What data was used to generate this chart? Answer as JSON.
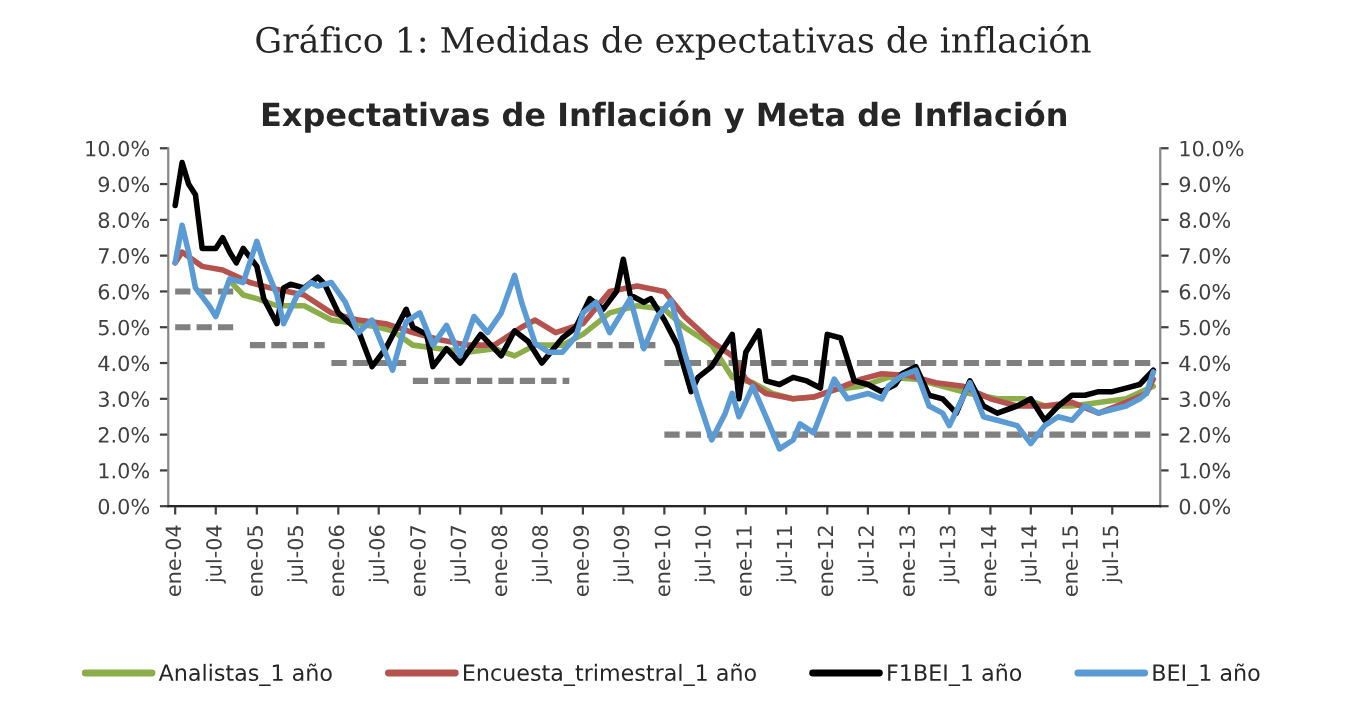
{
  "chart_data": {
    "type": "line",
    "title": "Expectativas de Inflación y Meta de Inflación",
    "annotations": [
      "Gráfico 1: Medidas de expectativas de inflación"
    ],
    "xlim": [
      "2003-12",
      "2016-02"
    ],
    "xticks": [
      {
        "value": "2004-01",
        "label": "ene-04"
      },
      {
        "value": "2004-07",
        "label": "jul-04"
      },
      {
        "value": "2005-01",
        "label": "ene-05"
      },
      {
        "value": "2005-07",
        "label": "jul-05"
      },
      {
        "value": "2006-01",
        "label": "ene-06"
      },
      {
        "value": "2006-07",
        "label": "jul-06"
      },
      {
        "value": "2007-01",
        "label": "ene-07"
      },
      {
        "value": "2007-07",
        "label": "jul-07"
      },
      {
        "value": "2008-01",
        "label": "ene-08"
      },
      {
        "value": "2008-07",
        "label": "jul-08"
      },
      {
        "value": "2009-01",
        "label": "ene-09"
      },
      {
        "value": "2009-07",
        "label": "jul-09"
      },
      {
        "value": "2010-01",
        "label": "ene-10"
      },
      {
        "value": "2010-07",
        "label": "jul-10"
      },
      {
        "value": "2011-01",
        "label": "ene-11"
      },
      {
        "value": "2011-07",
        "label": "jul-11"
      },
      {
        "value": "2012-01",
        "label": "ene-12"
      },
      {
        "value": "2012-07",
        "label": "jul-12"
      },
      {
        "value": "2013-01",
        "label": "ene-13"
      },
      {
        "value": "2013-07",
        "label": "jul-13"
      },
      {
        "value": "2014-01",
        "label": "ene-14"
      },
      {
        "value": "2014-07",
        "label": "jul-14"
      },
      {
        "value": "2015-01",
        "label": "ene-15"
      },
      {
        "value": "2015-07",
        "label": "jul-15"
      }
    ],
    "ylim": [
      0,
      10
    ],
    "yticks": [
      {
        "value": 0,
        "label": "0.0%"
      },
      {
        "value": 1,
        "label": "1.0%"
      },
      {
        "value": 2,
        "label": "2.0%"
      },
      {
        "value": 3,
        "label": "3.0%"
      },
      {
        "value": 4,
        "label": "4.0%"
      },
      {
        "value": 5,
        "label": "5.0%"
      },
      {
        "value": 6,
        "label": "6.0%"
      },
      {
        "value": 7,
        "label": "7.0%"
      },
      {
        "value": 8,
        "label": "8.0%"
      },
      {
        "value": 9,
        "label": "9.0%"
      },
      {
        "value": 10,
        "label": "10.0%"
      }
    ],
    "y2lim": [
      0,
      10
    ],
    "y2ticks": [
      {
        "value": 0,
        "label": "0.0%"
      },
      {
        "value": 1,
        "label": "1.0%"
      },
      {
        "value": 2,
        "label": "2.0%"
      },
      {
        "value": 3,
        "label": "3.0%"
      },
      {
        "value": 4,
        "label": "4.0%"
      },
      {
        "value": 5,
        "label": "5.0%"
      },
      {
        "value": 6,
        "label": "6.0%"
      },
      {
        "value": 7,
        "label": "7.0%"
      },
      {
        "value": 8,
        "label": "8.0%"
      },
      {
        "value": 9,
        "label": "9.0%"
      },
      {
        "value": 10,
        "label": "10.0%"
      }
    ],
    "grid": false,
    "legend": "bottom",
    "marker": "none",
    "series": [
      {
        "color": "#808080",
        "line_style": "dashed",
        "x": [
          "2004-01",
          "2004-10"
        ],
        "values": [
          6.0,
          6.0
        ]
      },
      {
        "color": "#808080",
        "line_style": "dashed",
        "x": [
          "2004-01",
          "2004-10"
        ],
        "values": [
          5.0,
          5.0
        ]
      },
      {
        "color": "#808080",
        "line_style": "dashed",
        "x": [
          "2004-12",
          "2005-11"
        ],
        "values": [
          4.5,
          4.5
        ]
      },
      {
        "color": "#808080",
        "line_style": "dashed",
        "x": [
          "2005-12",
          "2006-11"
        ],
        "values": [
          4.0,
          4.0
        ]
      },
      {
        "color": "#808080",
        "line_style": "dashed",
        "x": [
          "2006-12",
          "2008-11"
        ],
        "values": [
          3.5,
          3.5
        ]
      },
      {
        "color": "#808080",
        "line_style": "dashed",
        "x": [
          "2008-12",
          "2009-12"
        ],
        "values": [
          4.5,
          4.5
        ]
      },
      {
        "color": "#808080",
        "line_style": "dashed",
        "x": [
          "2010-01",
          "2016-01"
        ],
        "values": [
          4.0,
          4.0
        ]
      },
      {
        "color": "#808080",
        "line_style": "dashed",
        "x": [
          "2010-01",
          "2016-01"
        ],
        "values": [
          2.0,
          2.0
        ]
      },
      {
        "name": "Analistas_1 año",
        "color": "#8cae4a",
        "line_style": "solid",
        "x": [
          "2004-09",
          "2004-11",
          "2005-01",
          "2005-04",
          "2005-08",
          "2005-12",
          "2006-04",
          "2006-07",
          "2006-09",
          "2006-12",
          "2007-04",
          "2007-08",
          "2007-12",
          "2008-03",
          "2008-06",
          "2008-10",
          "2009-01",
          "2009-05",
          "2009-09",
          "2010-01",
          "2010-04",
          "2010-08",
          "2010-11",
          "2011-02",
          "2011-05",
          "2011-08",
          "2011-11",
          "2012-02",
          "2012-06",
          "2012-10",
          "2013-02",
          "2013-06",
          "2013-10",
          "2014-02",
          "2014-06",
          "2014-09",
          "2015-01",
          "2015-05",
          "2015-09",
          "2016-01"
        ],
        "values": [
          6.3,
          5.9,
          5.8,
          5.6,
          5.6,
          5.2,
          5.1,
          5.0,
          4.9,
          4.5,
          4.4,
          4.3,
          4.4,
          4.2,
          4.5,
          4.5,
          4.8,
          5.4,
          5.6,
          5.5,
          5.0,
          4.5,
          3.6,
          3.45,
          3.15,
          3.0,
          3.05,
          3.25,
          3.35,
          3.6,
          3.55,
          3.35,
          3.15,
          3.0,
          3.0,
          2.8,
          2.8,
          2.9,
          3.0,
          3.35
        ]
      },
      {
        "name": "Encuesta_trimestral_1 año",
        "color": "#b5524d",
        "line_style": "solid",
        "x": [
          "2004-01",
          "2004-02",
          "2004-05",
          "2004-08",
          "2004-12",
          "2005-03",
          "2005-08",
          "2005-12",
          "2006-04",
          "2006-08",
          "2006-12",
          "2007-04",
          "2007-08",
          "2007-12",
          "2008-04",
          "2008-06",
          "2008-09",
          "2009-01",
          "2009-05",
          "2009-09",
          "2010-01",
          "2010-04",
          "2010-08",
          "2010-11",
          "2011-01",
          "2011-04",
          "2011-08",
          "2011-11",
          "2012-02",
          "2012-06",
          "2012-09",
          "2013-01",
          "2013-05",
          "2013-09",
          "2014-01",
          "2014-05",
          "2014-09",
          "2015-01",
          "2015-05",
          "2015-09",
          "2015-12",
          "2016-01"
        ],
        "values": [
          6.8,
          7.1,
          6.7,
          6.6,
          6.25,
          6.1,
          5.9,
          5.4,
          5.2,
          5.1,
          4.85,
          4.65,
          4.5,
          4.5,
          5.0,
          5.2,
          4.85,
          5.1,
          6.0,
          6.15,
          6.0,
          5.3,
          4.6,
          4.2,
          3.55,
          3.15,
          3.0,
          3.05,
          3.25,
          3.55,
          3.7,
          3.65,
          3.45,
          3.35,
          3.0,
          2.8,
          2.8,
          2.9,
          2.6,
          2.9,
          3.15,
          3.55
        ]
      },
      {
        "name": "F1BEI_1 año",
        "color": "#000000",
        "line_style": "solid",
        "x": [
          "2004-01",
          "2004-02",
          "2004-03",
          "2004-04",
          "2004-05",
          "2004-07",
          "2004-08",
          "2004-09",
          "2004-10",
          "2004-11",
          "2005-01",
          "2005-02",
          "2005-04",
          "2005-05",
          "2005-06",
          "2005-08",
          "2005-10",
          "2005-11",
          "2006-01",
          "2006-04",
          "2006-06",
          "2006-08",
          "2006-11",
          "2006-12",
          "2007-02",
          "2007-03",
          "2007-05",
          "2007-07",
          "2007-10",
          "2008-01",
          "2008-03",
          "2008-05",
          "2008-07",
          "2008-10",
          "2008-12",
          "2009-02",
          "2009-04",
          "2009-06",
          "2009-07",
          "2009-08",
          "2009-10",
          "2009-11",
          "2010-01",
          "2010-03",
          "2010-05",
          "2010-06",
          "2010-08",
          "2010-11",
          "2010-12",
          "2011-01",
          "2011-03",
          "2011-04",
          "2011-06",
          "2011-08",
          "2011-10",
          "2011-12",
          "2012-01",
          "2012-03",
          "2012-05",
          "2012-07",
          "2012-09",
          "2012-11",
          "2012-12",
          "2013-02",
          "2013-04",
          "2013-06",
          "2013-08",
          "2013-10",
          "2013-12",
          "2014-02",
          "2014-05",
          "2014-07",
          "2014-09",
          "2014-11",
          "2015-01",
          "2015-03",
          "2015-05",
          "2015-07",
          "2015-09",
          "2015-11",
          "2016-01"
        ],
        "values": [
          8.4,
          9.6,
          9.0,
          8.7,
          7.2,
          7.2,
          7.5,
          7.1,
          6.8,
          7.2,
          6.7,
          5.8,
          5.1,
          6.1,
          6.2,
          6.1,
          6.4,
          6.2,
          5.4,
          4.9,
          3.9,
          4.4,
          5.5,
          5.0,
          4.8,
          3.9,
          4.4,
          4.0,
          4.8,
          4.2,
          4.9,
          4.6,
          4.0,
          4.7,
          5.0,
          5.8,
          5.5,
          6.0,
          6.9,
          5.9,
          5.7,
          5.8,
          5.2,
          4.5,
          3.2,
          3.6,
          3.9,
          4.8,
          3.0,
          4.3,
          4.9,
          3.5,
          3.4,
          3.6,
          3.5,
          3.3,
          4.8,
          4.7,
          3.5,
          3.4,
          3.2,
          3.4,
          3.7,
          3.9,
          3.1,
          3.0,
          2.6,
          3.5,
          2.8,
          2.6,
          2.8,
          3.0,
          2.4,
          2.8,
          3.1,
          3.1,
          3.2,
          3.2,
          3.3,
          3.4,
          3.8
        ]
      },
      {
        "name": "BEI_1 año",
        "color": "#5b9bd5",
        "line_style": "solid",
        "x": [
          "2004-01",
          "2004-02",
          "2004-03",
          "2004-04",
          "2004-06",
          "2004-07",
          "2004-09",
          "2004-11",
          "2005-01",
          "2005-02",
          "2005-04",
          "2005-05",
          "2005-07",
          "2005-09",
          "2005-10",
          "2005-12",
          "2006-02",
          "2006-04",
          "2006-06",
          "2006-09",
          "2006-11",
          "2007-01",
          "2007-03",
          "2007-05",
          "2007-07",
          "2007-09",
          "2007-11",
          "2008-01",
          "2008-03",
          "2008-04",
          "2008-06",
          "2008-08",
          "2008-10",
          "2008-12",
          "2009-01",
          "2009-03",
          "2009-05",
          "2009-08",
          "2009-10",
          "2009-12",
          "2010-02",
          "2010-04",
          "2010-06",
          "2010-08",
          "2010-10",
          "2010-11",
          "2010-12",
          "2011-02",
          "2011-04",
          "2011-06",
          "2011-08",
          "2011-09",
          "2011-11",
          "2012-02",
          "2012-04",
          "2012-07",
          "2012-09",
          "2012-10",
          "2012-12",
          "2013-02",
          "2013-04",
          "2013-06",
          "2013-07",
          "2013-10",
          "2013-12",
          "2014-02",
          "2014-05",
          "2014-07",
          "2014-09",
          "2014-11",
          "2015-01",
          "2015-03",
          "2015-05",
          "2015-07",
          "2015-09",
          "2015-11",
          "2015-12",
          "2016-01"
        ],
        "values": [
          6.8,
          7.85,
          7.1,
          6.1,
          5.6,
          5.3,
          6.35,
          6.25,
          7.4,
          6.8,
          5.9,
          5.1,
          5.9,
          6.25,
          6.15,
          6.25,
          5.7,
          4.85,
          5.2,
          3.8,
          5.15,
          5.4,
          4.5,
          5.05,
          4.2,
          5.3,
          4.85,
          5.4,
          6.45,
          5.7,
          4.55,
          4.3,
          4.3,
          4.75,
          5.4,
          5.7,
          4.85,
          5.8,
          4.4,
          5.3,
          5.75,
          4.3,
          3.0,
          1.85,
          2.6,
          3.15,
          2.5,
          3.35,
          2.5,
          1.6,
          1.85,
          2.3,
          2.05,
          3.55,
          3.0,
          3.15,
          3.0,
          3.35,
          3.65,
          3.8,
          2.8,
          2.6,
          2.25,
          3.45,
          2.5,
          2.4,
          2.25,
          1.75,
          2.25,
          2.5,
          2.4,
          2.8,
          2.6,
          2.7,
          2.8,
          3.0,
          3.15,
          3.75
        ]
      }
    ]
  }
}
